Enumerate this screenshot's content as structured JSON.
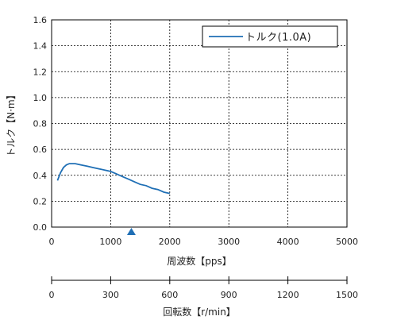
{
  "chart_data": {
    "type": "line",
    "xlabel": "周波数【pps】",
    "ylabel": "トルク【N·m】",
    "xlim": [
      0,
      5000
    ],
    "ylim": [
      0,
      1.6
    ],
    "x_ticks": [
      0,
      1000,
      2000,
      3000,
      4000,
      5000
    ],
    "y_ticks": [
      "0.0",
      "0.2",
      "0.4",
      "0.6",
      "0.8",
      "1.0",
      "1.2",
      "1.4",
      "1.6"
    ],
    "grid": true,
    "legend": {
      "placement": "top-right"
    },
    "series": [
      {
        "name": "トルク(1.0A)",
        "color": "#1f6fb5",
        "x": [
          100,
          150,
          200,
          250,
          300,
          350,
          400,
          500,
          600,
          700,
          800,
          900,
          1000,
          1100,
          1200,
          1300,
          1400,
          1500,
          1600,
          1700,
          1800,
          1900,
          2000
        ],
        "y": [
          0.36,
          0.42,
          0.46,
          0.48,
          0.49,
          0.49,
          0.49,
          0.48,
          0.47,
          0.46,
          0.45,
          0.44,
          0.43,
          0.41,
          0.39,
          0.37,
          0.35,
          0.33,
          0.32,
          0.3,
          0.29,
          0.27,
          0.26
        ]
      }
    ],
    "marker": {
      "shape": "triangle",
      "x": 1350,
      "color": "#1f6fb5"
    },
    "secondary_axis": {
      "xlabel": "回転数【r/min】",
      "xlim": [
        0,
        1500
      ],
      "x_ticks": [
        0,
        300,
        600,
        900,
        1200,
        1500
      ]
    }
  }
}
